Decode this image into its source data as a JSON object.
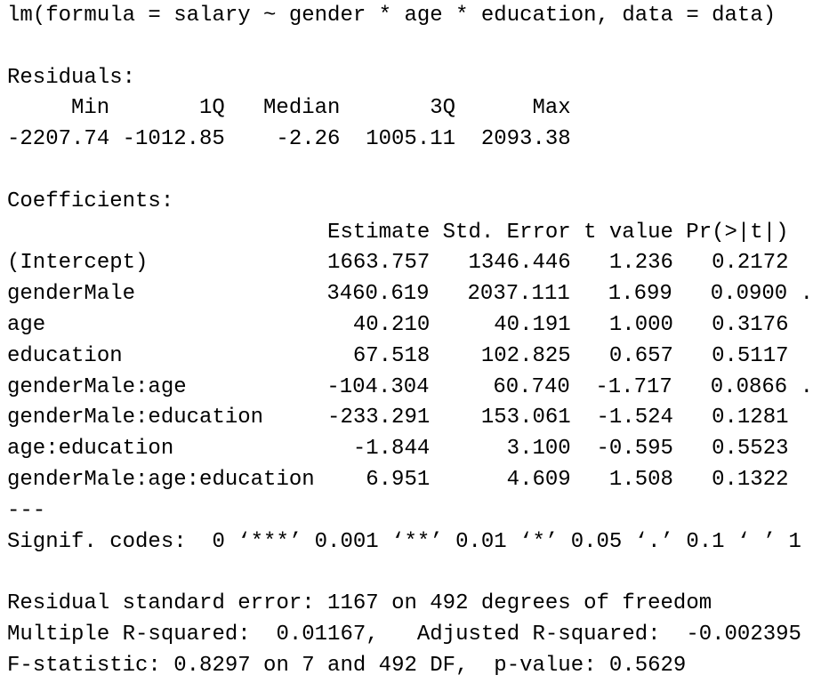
{
  "call": "lm(formula = salary ~ gender * age * education, data = data)",
  "residuals": {
    "label": "Residuals:",
    "headers": [
      "Min",
      "1Q",
      "Median",
      "3Q",
      "Max"
    ],
    "values": [
      "-2207.74",
      "-1012.85",
      "-2.26",
      "1005.11",
      "2093.38"
    ]
  },
  "coefficients": {
    "label": "Coefficients:",
    "headers": [
      "Estimate",
      "Std. Error",
      "t value",
      "Pr(>|t|)"
    ],
    "rows": [
      {
        "name": "(Intercept)",
        "cells": [
          "1663.757",
          "1346.446",
          "1.236",
          "0.2172"
        ]
      },
      {
        "name": "genderMale",
        "cells": [
          "3460.619",
          "2037.111",
          "1.699",
          "0.0900"
        ],
        "signif": "."
      },
      {
        "name": "age",
        "cells": [
          "40.210",
          "40.191",
          "1.000",
          "0.3176"
        ]
      },
      {
        "name": "education",
        "cells": [
          "67.518",
          "102.825",
          "0.657",
          "0.5117"
        ]
      },
      {
        "name": "genderMale:age",
        "cells": [
          "-104.304",
          "60.740",
          "-1.717",
          "0.0866"
        ],
        "signif": "."
      },
      {
        "name": "genderMale:education",
        "cells": [
          "-233.291",
          "153.061",
          "-1.524",
          "0.1281"
        ]
      },
      {
        "name": "age:education",
        "cells": [
          "-1.844",
          "3.100",
          "-0.595",
          "0.5523"
        ]
      },
      {
        "name": "genderMale:age:education",
        "cells": [
          "6.951",
          "4.609",
          "1.508",
          "0.1322"
        ]
      }
    ]
  },
  "separator": "---",
  "signif_codes": "Signif. codes:  0 ‘***’ 0.001 ‘**’ 0.01 ‘*’ 0.05 ‘.’ 0.1 ‘ ’ 1",
  "footer": [
    "Residual standard error: 1167 on 492 degrees of freedom",
    "Multiple R-squared:  0.01167,\tAdjusted R-squared:  -0.002395",
    "F-statistic: 0.8297 on 7 and 492 DF,  p-value: 0.5629"
  ]
}
